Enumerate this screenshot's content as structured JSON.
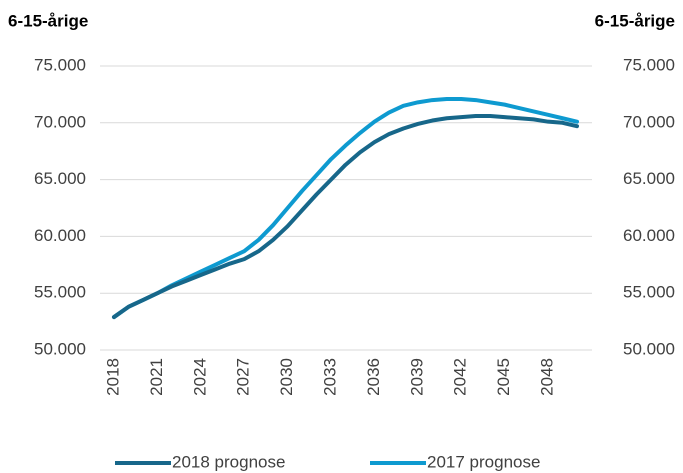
{
  "chart_data": {
    "type": "line",
    "ylabel": "6-15-årige",
    "y2label": "6-15-årige",
    "x": [
      2018,
      2019,
      2020,
      2021,
      2022,
      2023,
      2024,
      2025,
      2026,
      2027,
      2028,
      2029,
      2030,
      2031,
      2032,
      2033,
      2034,
      2035,
      2036,
      2037,
      2038,
      2039,
      2040,
      2041,
      2042,
      2043,
      2044,
      2045,
      2046,
      2047,
      2048,
      2049,
      2050
    ],
    "xlim": [
      2018,
      2050
    ],
    "xticks": [
      2018,
      2021,
      2024,
      2027,
      2030,
      2033,
      2036,
      2039,
      2042,
      2045,
      2048
    ],
    "ylim": [
      50000,
      75000
    ],
    "yticks": [
      {
        "value": 50000,
        "label": "50.000"
      },
      {
        "value": 55000,
        "label": "55.000"
      },
      {
        "value": 60000,
        "label": "60.000"
      },
      {
        "value": 65000,
        "label": "65.000"
      },
      {
        "value": 70000,
        "label": "70.000"
      },
      {
        "value": 75000,
        "label": "75.000"
      }
    ],
    "y2lim": [
      50000,
      75000
    ],
    "y2ticks": [
      {
        "value": 50000,
        "label": "50.000"
      },
      {
        "value": 55000,
        "label": "55.000"
      },
      {
        "value": 60000,
        "label": "60.000"
      },
      {
        "value": 65000,
        "label": "65.000"
      },
      {
        "value": 70000,
        "label": "70.000"
      },
      {
        "value": 75000,
        "label": "75.000"
      }
    ],
    "grid": true,
    "legend": "bottom",
    "series": [
      {
        "name": "2018 prognose",
        "color": "#17678a",
        "values": [
          52900,
          53800,
          54400,
          55000,
          55600,
          56100,
          56600,
          57100,
          57600,
          58000,
          58700,
          59700,
          60900,
          62300,
          63700,
          65000,
          66300,
          67400,
          68300,
          69000,
          69500,
          69900,
          70200,
          70400,
          70500,
          70600,
          70600,
          70500,
          70400,
          70300,
          70100,
          70000,
          69700
        ]
      },
      {
        "name": "2017 prognose",
        "color": "#0e9ad0",
        "values": [
          52900,
          53800,
          54400,
          55000,
          55700,
          56300,
          56900,
          57500,
          58100,
          58700,
          59700,
          61000,
          62500,
          64000,
          65400,
          66800,
          68000,
          69100,
          70100,
          70900,
          71500,
          71800,
          72000,
          72100,
          72100,
          72000,
          71800,
          71600,
          71300,
          71000,
          70700,
          70400,
          70100
        ]
      }
    ]
  }
}
